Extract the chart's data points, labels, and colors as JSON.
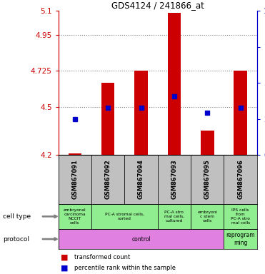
{
  "title": "GDS4124 / 241866_at",
  "samples": [
    "GSM867091",
    "GSM867092",
    "GSM867094",
    "GSM867093",
    "GSM867095",
    "GSM867096"
  ],
  "bar_values": [
    4.21,
    4.65,
    4.725,
    5.09,
    4.35,
    4.725
  ],
  "bar_bottom": 4.2,
  "dot_values": [
    4.425,
    4.495,
    4.495,
    4.565,
    4.465,
    4.495
  ],
  "ylim": [
    4.2,
    5.1
  ],
  "yticks_left": [
    4.2,
    4.5,
    4.725,
    4.95,
    5.1
  ],
  "ytick_labels_left": [
    "4.2",
    "4.5",
    "4.725",
    "4.95",
    "5.1"
  ],
  "hlines": [
    4.5,
    4.725,
    4.95
  ],
  "bar_color": "#cc0000",
  "dot_color": "#0000cc",
  "grid_color": "#808080",
  "axis_color_left": "#cc0000",
  "axis_color_right": "#0000cc",
  "bg_sample_row": "#c0c0c0",
  "cell_type_color": "#90ee90",
  "protocol_control_color": "#e080e0",
  "protocol_reprogram_color": "#90ee90"
}
